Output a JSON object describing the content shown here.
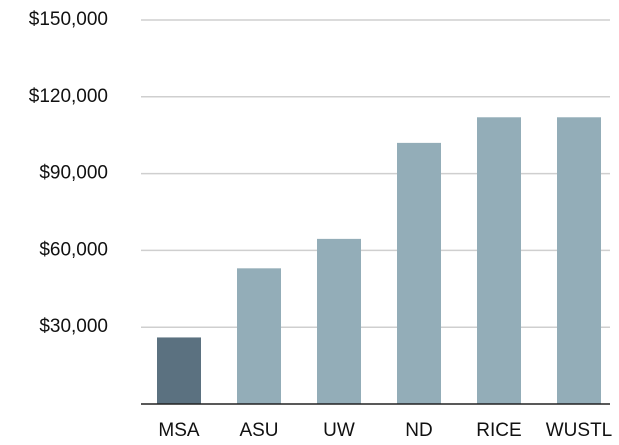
{
  "chart_data": {
    "type": "bar",
    "categories": [
      "MSA",
      "ASU",
      "UW",
      "ND",
      "RICE",
      "WUSTL"
    ],
    "values": [
      26000,
      53000,
      64500,
      102000,
      112000,
      112000
    ],
    "colors": [
      "#5b7180",
      "#93adb8",
      "#93adb8",
      "#93adb8",
      "#93adb8",
      "#93adb8"
    ],
    "ylim": [
      0,
      150000
    ],
    "yticks": [
      {
        "value": 30000,
        "label": "$30,000"
      },
      {
        "value": 60000,
        "label": "$60,000"
      },
      {
        "value": 90000,
        "label": "$90,000"
      },
      {
        "value": 120000,
        "label": "$120,000"
      },
      {
        "value": 150000,
        "label": "$150,000"
      }
    ],
    "grid": true
  }
}
